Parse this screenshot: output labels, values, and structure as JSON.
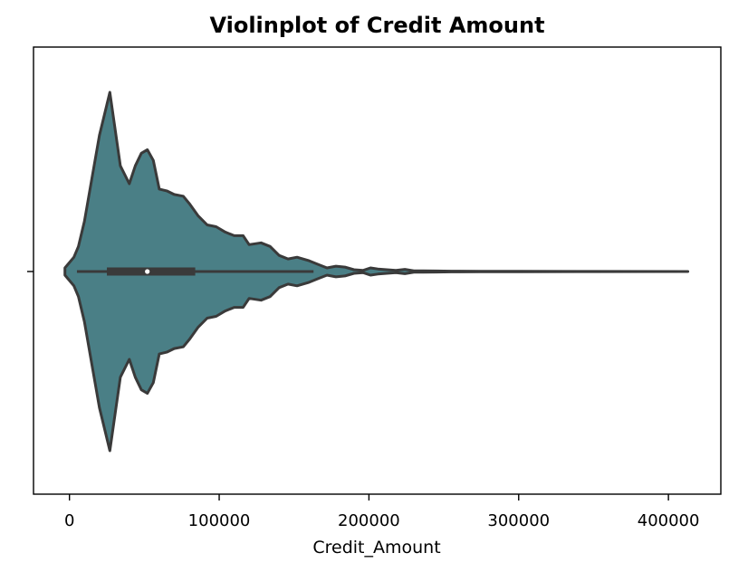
{
  "chart_data": {
    "type": "violin",
    "title": "Violinplot of Credit Amount",
    "xlabel": "Credit_Amount",
    "ylabel": "",
    "xlim": [
      -24000,
      435000
    ],
    "x_ticks": [
      0,
      100000,
      200000,
      300000,
      400000
    ],
    "x_tick_labels": [
      "0",
      "100000",
      "200000",
      "300000",
      "400000"
    ],
    "grid": false,
    "fill_color": "#4a7f86",
    "line_color": "#3a3a3a",
    "density_profile": [
      [
        -3000,
        0.02
      ],
      [
        3000,
        0.08
      ],
      [
        6000,
        0.14
      ],
      [
        10000,
        0.28
      ],
      [
        15000,
        0.52
      ],
      [
        20000,
        0.76
      ],
      [
        27000,
        1.0
      ],
      [
        34000,
        0.59
      ],
      [
        40000,
        0.49
      ],
      [
        44000,
        0.59
      ],
      [
        48000,
        0.66
      ],
      [
        52000,
        0.68
      ],
      [
        56000,
        0.62
      ],
      [
        60000,
        0.46
      ],
      [
        65000,
        0.45
      ],
      [
        70000,
        0.43
      ],
      [
        76000,
        0.42
      ],
      [
        80000,
        0.38
      ],
      [
        86000,
        0.31
      ],
      [
        92000,
        0.26
      ],
      [
        98000,
        0.25
      ],
      [
        104000,
        0.22
      ],
      [
        110000,
        0.2
      ],
      [
        116000,
        0.2
      ],
      [
        120000,
        0.15
      ],
      [
        128000,
        0.16
      ],
      [
        134000,
        0.14
      ],
      [
        140000,
        0.09
      ],
      [
        146000,
        0.07
      ],
      [
        152000,
        0.08
      ],
      [
        160000,
        0.06
      ],
      [
        166000,
        0.04
      ],
      [
        172000,
        0.02
      ],
      [
        178000,
        0.03
      ],
      [
        184000,
        0.025
      ],
      [
        190000,
        0.01
      ],
      [
        196000,
        0.006
      ],
      [
        201000,
        0.02
      ],
      [
        206000,
        0.014
      ],
      [
        212000,
        0.01
      ],
      [
        218000,
        0.006
      ],
      [
        224000,
        0.012
      ],
      [
        230000,
        0.004
      ],
      [
        236000,
        0.004
      ],
      [
        245000,
        0.003
      ],
      [
        255000,
        0.002
      ],
      [
        275000,
        0.001
      ],
      [
        300000,
        0.001
      ],
      [
        350000,
        0.0005
      ],
      [
        413000,
        0.0
      ]
    ],
    "box": {
      "q1": 25000,
      "median": 52000,
      "q3": 84000,
      "whisker_low": 5000,
      "whisker_high": 163000
    }
  }
}
